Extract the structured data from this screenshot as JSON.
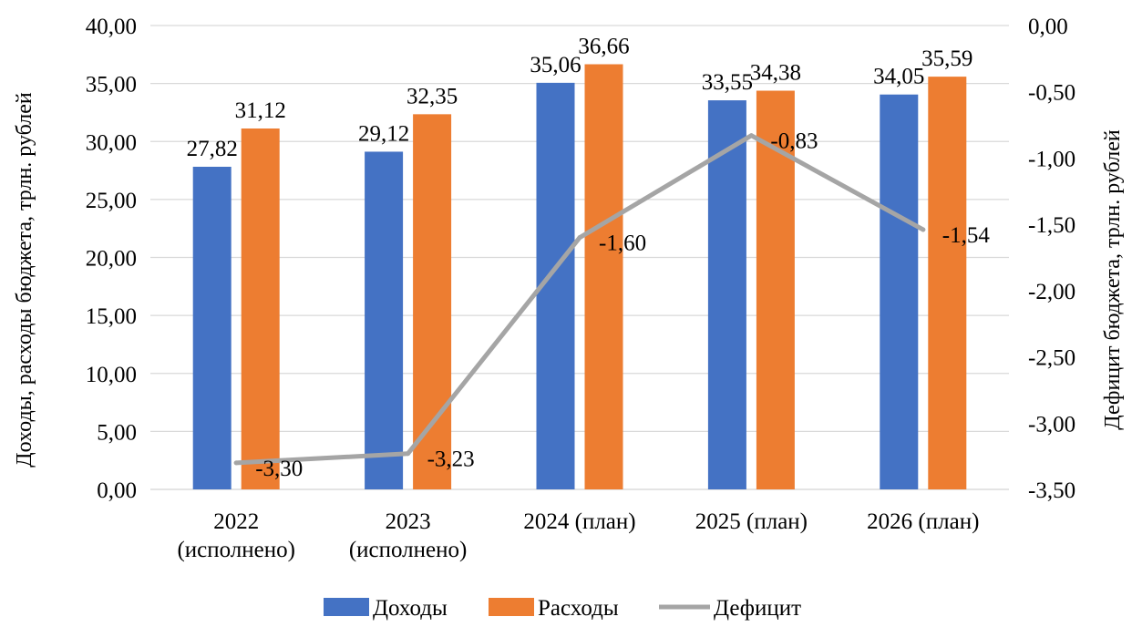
{
  "chart_data": {
    "type": "bar",
    "categories": [
      [
        "2022",
        "(исполнено)"
      ],
      [
        "2023",
        "(исполнено)"
      ],
      [
        "2024 (план)"
      ],
      [
        "2025 (план)"
      ],
      [
        "2026 (план)"
      ]
    ],
    "series": [
      {
        "name": "Доходы",
        "type": "bar",
        "axis": "left",
        "color": "#4472C4",
        "values": [
          27.82,
          29.12,
          35.06,
          33.55,
          34.05
        ],
        "labels": [
          "27,82",
          "29,12",
          "35,06",
          "33,55",
          "34,05"
        ]
      },
      {
        "name": "Расходы",
        "type": "bar",
        "axis": "left",
        "color": "#ED7D31",
        "values": [
          31.12,
          32.35,
          36.66,
          34.38,
          35.59
        ],
        "labels": [
          "31,12",
          "32,35",
          "36,66",
          "34,38",
          "35,59"
        ]
      },
      {
        "name": "Дефицит",
        "type": "line",
        "axis": "right",
        "color": "#A5A5A5",
        "values": [
          -3.3,
          -3.23,
          -1.6,
          -0.83,
          -1.54
        ],
        "labels": [
          "-3,30",
          "-3,23",
          "-1,60",
          "-0,83",
          "-1,54"
        ]
      }
    ],
    "ylabel_left": "Доходы, расходы бюджета, трлн. рублей",
    "ylabel_right": "Дефицит бюджета, трлн. рублей",
    "ylim_left": [
      0,
      40
    ],
    "ylim_right": [
      -3.5,
      0
    ],
    "yticks_left": [
      "0,00",
      "5,00",
      "10,00",
      "15,00",
      "20,00",
      "25,00",
      "30,00",
      "35,00",
      "40,00"
    ],
    "yticks_right": [
      "-3,50",
      "-3,00",
      "-2,50",
      "-2,00",
      "-1,50",
      "-1,00",
      "-0,50",
      "0,00"
    ],
    "grid": true,
    "legend_position": "bottom"
  }
}
